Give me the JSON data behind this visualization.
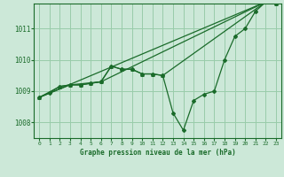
{
  "background_color": "#cce8d8",
  "grid_color": "#99ccaa",
  "line_color": "#1a6b2a",
  "xlabel": "Graphe pression niveau de la mer (hPa)",
  "ylim": [
    1007.5,
    1011.8
  ],
  "xlim": [
    -0.5,
    23.5
  ],
  "yticks": [
    1008,
    1009,
    1010,
    1011
  ],
  "xticks": [
    0,
    1,
    2,
    3,
    4,
    5,
    6,
    7,
    8,
    9,
    10,
    11,
    12,
    13,
    14,
    15,
    16,
    17,
    18,
    19,
    20,
    21,
    22,
    23
  ],
  "series_main_x": [
    0,
    1,
    2,
    3,
    4,
    5,
    6,
    7,
    8,
    9,
    10,
    11,
    12,
    13,
    14,
    15,
    16,
    17,
    18,
    19,
    20,
    21,
    22,
    23
  ],
  "series_main_y": [
    1008.8,
    1008.95,
    1009.15,
    1009.2,
    1009.2,
    1009.25,
    1009.3,
    1009.8,
    1009.7,
    1009.7,
    1009.55,
    1009.55,
    1009.5,
    1008.3,
    1007.75,
    1008.7,
    1008.9,
    1009.0,
    1010.0,
    1010.75,
    1011.0,
    1011.55,
    1011.85,
    1011.8
  ],
  "series_tri_x": [
    0,
    2,
    3,
    4,
    5,
    6,
    7,
    8,
    9,
    10,
    11,
    12,
    22,
    23
  ],
  "series_tri_y": [
    1008.8,
    1009.15,
    1009.2,
    1009.2,
    1009.25,
    1009.3,
    1009.8,
    1009.7,
    1009.7,
    1009.55,
    1009.55,
    1009.5,
    1011.85,
    1011.8
  ],
  "series_line1_x": [
    0,
    22,
    23
  ],
  "series_line1_y": [
    1008.8,
    1011.85,
    1011.8
  ],
  "series_line2_x": [
    0,
    3,
    6,
    22,
    23
  ],
  "series_line2_y": [
    1008.8,
    1009.2,
    1009.3,
    1011.85,
    1011.8
  ]
}
